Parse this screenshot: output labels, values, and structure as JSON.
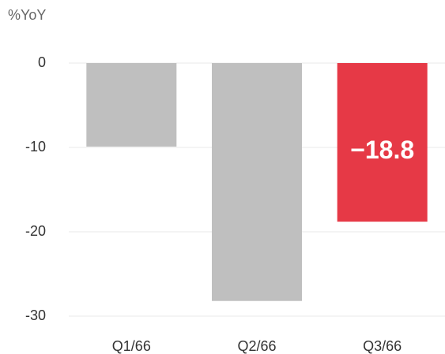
{
  "chart_data": {
    "type": "bar",
    "y_label": "%YoY",
    "categories": [
      "Q1/66",
      "Q2/66",
      "Q3/66"
    ],
    "values": [
      -9.9,
      -28.2,
      -18.8
    ],
    "value_labels": [
      null,
      null,
      "−18.8"
    ],
    "colors": [
      "#bfbfbf",
      "#bfbfbf",
      "#e63946"
    ],
    "ylim": [
      -30,
      0
    ],
    "yticks": [
      0,
      -10,
      -20,
      -30
    ],
    "grid": true
  }
}
